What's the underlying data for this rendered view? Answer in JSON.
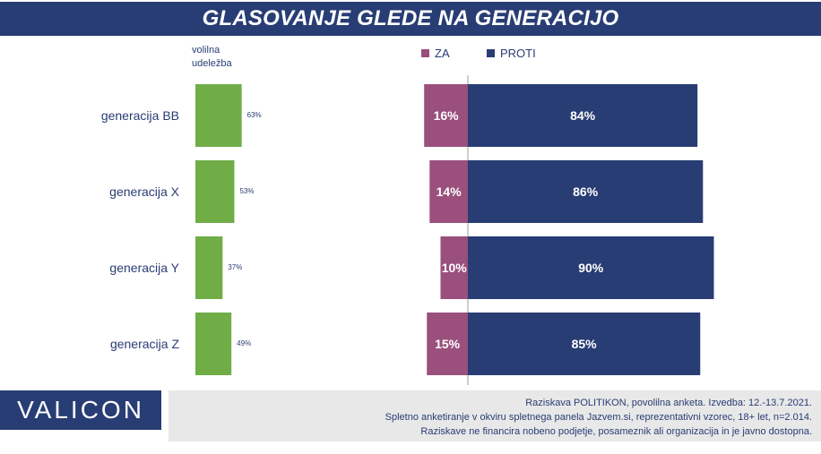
{
  "header": {
    "title": "GLASOVANJE GLEDE NA GENERACIJO"
  },
  "turnout_label": [
    "volilna",
    "udeležba"
  ],
  "legend": [
    {
      "label": "ZA",
      "color": "#9a4f7c"
    },
    {
      "label": "PROTI",
      "color": "#283d74"
    }
  ],
  "chart_data": {
    "type": "bar",
    "orientation": "horizontal",
    "categories": [
      "generacija BB",
      "generacija X",
      "generacija Y",
      "generacija Z"
    ],
    "turnout": {
      "values": [
        63,
        53,
        37,
        49
      ],
      "labels": [
        "63%",
        "53%",
        "37%",
        "49%"
      ],
      "color": "#70ad47"
    },
    "series": [
      {
        "name": "ZA",
        "values": [
          16,
          14,
          10,
          15
        ],
        "labels": [
          "16%",
          "14%",
          "10%",
          "15%"
        ],
        "color": "#9a4f7c"
      },
      {
        "name": "PROTI",
        "values": [
          84,
          86,
          90,
          85
        ],
        "labels": [
          "84%",
          "86%",
          "90%",
          "85%"
        ],
        "color": "#283d74"
      }
    ],
    "legend_position": "top"
  },
  "logo": {
    "text": "VALICON"
  },
  "footer": {
    "lines": [
      "Raziskava POLITIKON, povolilna anketa. Izvedba: 12.-13.7.2021.",
      "Spletno anketiranje v okviru spletnega panela Jazvem.si, reprezentativni vzorec, 18+ let, n=2.014.",
      "Raziskave ne financira nobeno podjetje, posameznik ali organizacija in je javno dostopna."
    ]
  }
}
